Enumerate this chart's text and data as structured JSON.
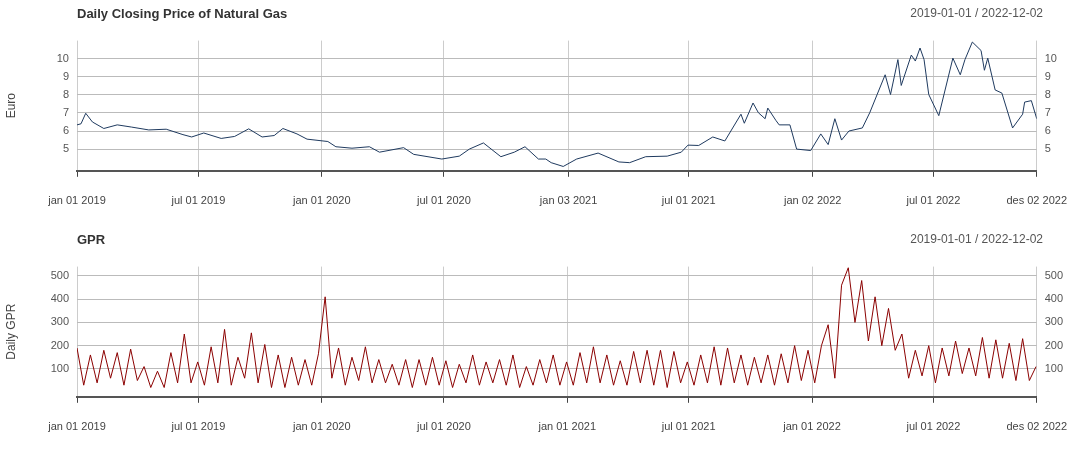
{
  "chart_data": [
    {
      "type": "line",
      "title": "Daily Closing Price of Natural Gas",
      "subtitle": "2019-01-01 / 2022-12-02",
      "ylabel": "Euro",
      "grid": true,
      "legend": false,
      "marker": "none",
      "line_style": "solid",
      "xlim": [
        "2019-01-01",
        "2022-12-02"
      ],
      "xticks": [
        {
          "value": "2019-01-01",
          "label": "jan 01 2019"
        },
        {
          "value": "2019-07-01",
          "label": "jul 01 2019"
        },
        {
          "value": "2020-01-01",
          "label": "jan 01 2020"
        },
        {
          "value": "2020-07-01",
          "label": "jul 01 2020"
        },
        {
          "value": "2021-01-03",
          "label": "jan 03 2021"
        },
        {
          "value": "2021-07-01",
          "label": "jul 01 2021"
        },
        {
          "value": "2022-01-02",
          "label": "jan 02 2022"
        },
        {
          "value": "2022-07-01",
          "label": "jul 01 2022"
        },
        {
          "value": "2022-12-02",
          "label": "des 02 2022"
        }
      ],
      "ylim": [
        3.8,
        11
      ],
      "yticks": [
        5,
        6,
        7,
        8,
        9,
        10
      ],
      "y2lim": [
        3.8,
        11
      ],
      "y2ticks": [
        5,
        6,
        7,
        8,
        9,
        10
      ],
      "series": [
        {
          "color": "#1f3a5f",
          "x": [
            "2019-01-01",
            "2019-01-07",
            "2019-01-14",
            "2019-01-24",
            "2019-02-10",
            "2019-03-02",
            "2019-03-23",
            "2019-04-18",
            "2019-05-14",
            "2019-06-08",
            "2019-06-21",
            "2019-07-09",
            "2019-08-04",
            "2019-08-24",
            "2019-09-14",
            "2019-10-04",
            "2019-10-22",
            "2019-11-04",
            "2019-11-25",
            "2019-12-10",
            "2020-01-10",
            "2020-01-22",
            "2020-02-15",
            "2020-03-12",
            "2020-03-27",
            "2020-05-02",
            "2020-05-17",
            "2020-06-28",
            "2020-07-24",
            "2020-08-08",
            "2020-08-29",
            "2020-09-24",
            "2020-10-14",
            "2020-10-30",
            "2020-11-19",
            "2020-11-30",
            "2020-12-08",
            "2020-12-26",
            "2021-01-15",
            "2021-02-16",
            "2021-03-19",
            "2021-04-04",
            "2021-04-28",
            "2021-05-30",
            "2021-06-20",
            "2021-06-30",
            "2021-07-16",
            "2021-08-06",
            "2021-08-24",
            "2021-09-17",
            "2021-09-22",
            "2021-10-05",
            "2021-10-13",
            "2021-10-23",
            "2021-10-27",
            "2021-11-08",
            "2021-11-13",
            "2021-11-29",
            "2021-12-09",
            "2021-12-30",
            "2022-01-14",
            "2022-01-25",
            "2022-02-04",
            "2022-02-14",
            "2022-02-25",
            "2022-03-17",
            "2022-03-28",
            "2022-04-20",
            "2022-04-28",
            "2022-05-09",
            "2022-05-14",
            "2022-05-29",
            "2022-06-04",
            "2022-06-11",
            "2022-06-17",
            "2022-06-24",
            "2022-07-09",
            "2022-07-30",
            "2022-08-10",
            "2022-08-17",
            "2022-08-28",
            "2022-09-10",
            "2022-09-15",
            "2022-09-20",
            "2022-10-01",
            "2022-10-11",
            "2022-10-27",
            "2022-11-11",
            "2022-11-14",
            "2022-11-24",
            "2022-12-02"
          ],
          "values": [
            6.34,
            6.4,
            6.98,
            6.5,
            6.14,
            6.34,
            6.22,
            6.06,
            6.1,
            5.8,
            5.67,
            5.89,
            5.59,
            5.7,
            6.12,
            5.67,
            5.75,
            6.14,
            5.84,
            5.55,
            5.42,
            5.13,
            5.05,
            5.13,
            4.83,
            5.08,
            4.71,
            4.45,
            4.61,
            5.0,
            5.34,
            4.58,
            4.83,
            5.13,
            4.45,
            4.45,
            4.25,
            4.04,
            4.45,
            4.78,
            4.29,
            4.25,
            4.58,
            4.61,
            4.83,
            5.22,
            5.2,
            5.67,
            5.45,
            6.93,
            6.43,
            7.55,
            7.01,
            6.68,
            7.27,
            6.59,
            6.34,
            6.34,
            5.0,
            4.92,
            5.84,
            5.25,
            6.68,
            5.5,
            6.0,
            6.17,
            7.01,
            9.11,
            8.02,
            9.95,
            8.52,
            10.2,
            9.87,
            10.59,
            9.95,
            8.02,
            6.85,
            10.03,
            9.11,
            9.95,
            10.92,
            10.45,
            9.36,
            10.03,
            8.27,
            8.1,
            6.17,
            6.93,
            7.6,
            7.68,
            6.68
          ]
        }
      ]
    },
    {
      "type": "line",
      "title": "GPR",
      "subtitle": "2019-01-01 / 2022-12-02",
      "ylabel": "Daily GPR",
      "grid": true,
      "legend": false,
      "marker": "none",
      "line_style": "solid",
      "xlim": [
        "2019-01-01",
        "2022-12-02"
      ],
      "xticks": [
        {
          "value": "2019-01-01",
          "label": "jan 01 2019"
        },
        {
          "value": "2019-07-01",
          "label": "jul 01 2019"
        },
        {
          "value": "2020-01-01",
          "label": "jan 01 2020"
        },
        {
          "value": "2020-07-01",
          "label": "jul 01 2020"
        },
        {
          "value": "2021-01-01",
          "label": "jan 01 2021"
        },
        {
          "value": "2021-07-01",
          "label": "jul 01 2021"
        },
        {
          "value": "2022-01-01",
          "label": "jan 01 2022"
        },
        {
          "value": "2022-07-01",
          "label": "jul 01 2022"
        },
        {
          "value": "2022-12-02",
          "label": "des 02 2022"
        }
      ],
      "ylim": [
        -20,
        540
      ],
      "yticks": [
        100,
        200,
        300,
        400,
        500
      ],
      "y2lim": [
        -20,
        540
      ],
      "y2ticks": [
        100,
        200,
        300,
        400,
        500
      ],
      "series": [
        {
          "color": "#8b0000",
          "x": [
            "2019-01-01",
            "2019-01-11",
            "2019-01-21",
            "2019-01-31",
            "2019-02-10",
            "2019-02-20",
            "2019-03-02",
            "2019-03-12",
            "2019-03-22",
            "2019-04-01",
            "2019-04-11",
            "2019-04-21",
            "2019-05-01",
            "2019-05-11",
            "2019-05-21",
            "2019-05-31",
            "2019-06-10",
            "2019-06-20",
            "2019-06-30",
            "2019-07-10",
            "2019-07-20",
            "2019-07-30",
            "2019-08-09",
            "2019-08-19",
            "2019-08-29",
            "2019-09-08",
            "2019-09-18",
            "2019-09-28",
            "2019-10-08",
            "2019-10-18",
            "2019-10-28",
            "2019-11-07",
            "2019-11-17",
            "2019-11-27",
            "2019-12-07",
            "2019-12-17",
            "2019-12-27",
            "2020-01-06",
            "2020-01-16",
            "2020-01-26",
            "2020-02-05",
            "2020-02-15",
            "2020-02-25",
            "2020-03-06",
            "2020-03-16",
            "2020-03-26",
            "2020-04-05",
            "2020-04-15",
            "2020-04-25",
            "2020-05-05",
            "2020-05-15",
            "2020-05-25",
            "2020-06-04",
            "2020-06-14",
            "2020-06-24",
            "2020-07-04",
            "2020-07-14",
            "2020-07-24",
            "2020-08-03",
            "2020-08-13",
            "2020-08-23",
            "2020-09-02",
            "2020-09-12",
            "2020-09-22",
            "2020-10-02",
            "2020-10-12",
            "2020-10-22",
            "2020-11-01",
            "2020-11-11",
            "2020-11-21",
            "2020-12-01",
            "2020-12-11",
            "2020-12-21",
            "2020-12-31",
            "2021-01-10",
            "2021-01-20",
            "2021-01-30",
            "2021-02-09",
            "2021-02-19",
            "2021-03-01",
            "2021-03-11",
            "2021-03-21",
            "2021-03-31",
            "2021-04-10",
            "2021-04-20",
            "2021-04-30",
            "2021-05-10",
            "2021-05-20",
            "2021-05-30",
            "2021-06-09",
            "2021-06-19",
            "2021-06-29",
            "2021-07-09",
            "2021-07-19",
            "2021-07-29",
            "2021-08-08",
            "2021-08-18",
            "2021-08-28",
            "2021-09-07",
            "2021-09-17",
            "2021-09-27",
            "2021-10-07",
            "2021-10-17",
            "2021-10-27",
            "2021-11-06",
            "2021-11-16",
            "2021-11-26",
            "2021-12-06",
            "2021-12-16",
            "2021-12-26",
            "2022-01-05",
            "2022-01-15",
            "2022-01-25",
            "2022-02-04",
            "2022-02-14",
            "2022-02-24",
            "2022-03-06",
            "2022-03-16",
            "2022-03-26",
            "2022-04-05",
            "2022-04-15",
            "2022-04-25",
            "2022-05-05",
            "2022-05-15",
            "2022-05-25",
            "2022-06-04",
            "2022-06-14",
            "2022-06-24",
            "2022-07-04",
            "2022-07-14",
            "2022-07-24",
            "2022-08-03",
            "2022-08-13",
            "2022-08-23",
            "2022-09-02",
            "2022-09-12",
            "2022-09-22",
            "2022-10-02",
            "2022-10-12",
            "2022-10-22",
            "2022-11-01",
            "2022-11-11",
            "2022-11-21",
            "2022-12-01"
          ],
          "values": [
            190,
            30,
            160,
            40,
            180,
            60,
            170,
            30,
            185,
            50,
            110,
            20,
            90,
            20,
            170,
            40,
            250,
            40,
            130,
            30,
            195,
            40,
            270,
            30,
            150,
            60,
            255,
            40,
            205,
            20,
            160,
            20,
            150,
            30,
            140,
            30,
            165,
            410,
            60,
            190,
            30,
            150,
            50,
            195,
            40,
            140,
            40,
            120,
            30,
            140,
            20,
            140,
            30,
            150,
            30,
            135,
            20,
            120,
            40,
            160,
            30,
            130,
            40,
            140,
            30,
            160,
            20,
            110,
            30,
            140,
            40,
            160,
            30,
            130,
            30,
            170,
            40,
            195,
            40,
            160,
            30,
            135,
            30,
            175,
            40,
            180,
            30,
            180,
            20,
            175,
            40,
            130,
            30,
            160,
            40,
            195,
            30,
            190,
            40,
            160,
            30,
            150,
            40,
            160,
            30,
            165,
            40,
            200,
            50,
            180,
            40,
            200,
            290,
            60,
            460,
            535,
            300,
            480,
            220,
            410,
            200,
            360,
            180,
            250,
            60,
            180,
            70,
            200,
            40,
            190,
            70,
            220,
            80,
            190,
            70,
            235,
            60,
            225,
            60,
            210,
            50,
            230,
            50,
            110
          ]
        }
      ]
    }
  ]
}
